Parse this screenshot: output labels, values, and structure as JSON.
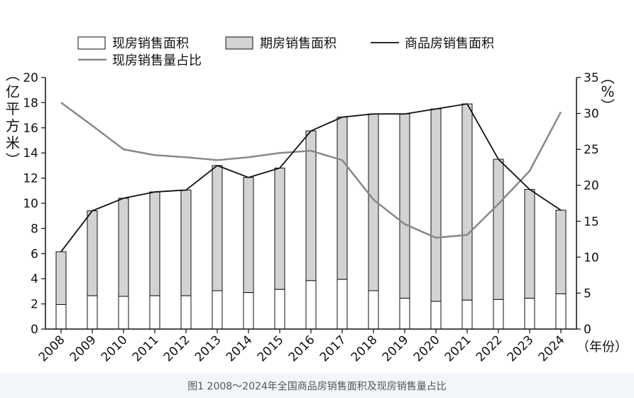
{
  "caption": "图1 2008～2024年全国商品房销售面积及现房销售量占比",
  "chart_data": {
    "type": "bar",
    "categories": [
      "2008",
      "2009",
      "2010",
      "2011",
      "2012",
      "2013",
      "2014",
      "2015",
      "2016",
      "2017",
      "2018",
      "2019",
      "2020",
      "2021",
      "2022",
      "2023",
      "2024"
    ],
    "series": [
      {
        "name": "现房销售面积",
        "type": "bar",
        "axis": "left",
        "stack": "area",
        "color": "#ffffff",
        "values": [
          1.95,
          2.65,
          2.6,
          2.65,
          2.65,
          3.05,
          2.9,
          3.15,
          3.85,
          3.95,
          3.05,
          2.45,
          2.2,
          2.3,
          2.35,
          2.45,
          2.8
        ]
      },
      {
        "name": "期房销售面积",
        "type": "bar",
        "axis": "left",
        "stack": "area",
        "color": "#d3d3d3",
        "values": [
          4.2,
          6.75,
          7.8,
          8.25,
          8.4,
          9.95,
          9.15,
          9.65,
          11.9,
          12.9,
          14.05,
          14.65,
          15.3,
          15.6,
          11.15,
          8.65,
          6.65
        ]
      },
      {
        "name": "商品房销售面积",
        "type": "line",
        "axis": "left",
        "color": "#111111",
        "values": [
          6.15,
          9.4,
          10.4,
          10.9,
          11.05,
          13.0,
          12.05,
          12.8,
          15.75,
          16.85,
          17.1,
          17.1,
          17.5,
          17.9,
          13.5,
          11.1,
          9.45
        ]
      },
      {
        "name": "现房销售量占比",
        "type": "line",
        "axis": "right",
        "color": "#888888",
        "values": [
          31.5,
          28.3,
          25.0,
          24.2,
          23.9,
          23.5,
          23.9,
          24.5,
          24.8,
          23.5,
          18.0,
          14.6,
          12.7,
          13.1,
          17.4,
          22.0,
          30.2
        ]
      }
    ],
    "ylabel": "（亿平方米）",
    "ylabel_right": "（%）",
    "xlabel": "（年份）",
    "ylim": [
      0,
      20
    ],
    "yticks": [
      0,
      2,
      4,
      6,
      8,
      10,
      12,
      14,
      16,
      18,
      20
    ],
    "ylim_right": [
      0,
      35
    ],
    "yticks_right": [
      0,
      5,
      10,
      15,
      20,
      25,
      30,
      35
    ],
    "grid": false,
    "legend_position": "top"
  }
}
